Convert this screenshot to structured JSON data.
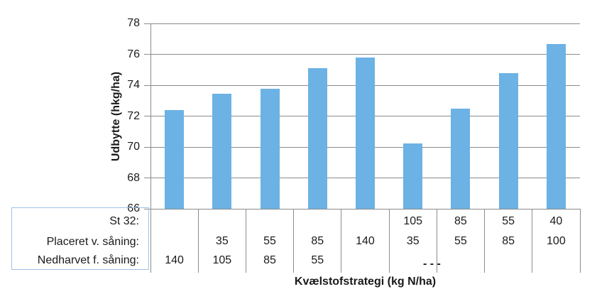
{
  "chart_data": {
    "type": "bar",
    "title": "",
    "ylabel": "Udbytte (hkg/ha)",
    "xlabel": "Kvælstofstrategi (kg N/ha)",
    "ylim": [
      66,
      78
    ],
    "yticks": [
      66,
      68,
      70,
      72,
      74,
      76,
      78
    ],
    "grid": true,
    "legend": false,
    "values": [
      72.4,
      73.45,
      73.75,
      75.1,
      75.8,
      70.25,
      72.5,
      74.8,
      76.65
    ],
    "category_levels": {
      "labels": [
        "St 32:",
        "Placeret v. såning:",
        "Nedharvet f. såning:"
      ],
      "matrix": [
        [
          "",
          "",
          "",
          "",
          "",
          "105",
          "85",
          "55",
          "40"
        ],
        [
          "",
          "35",
          "55",
          "85",
          "140",
          "35",
          "55",
          "85",
          "100"
        ],
        [
          "140",
          "105",
          "85",
          "55",
          "",
          "",
          "",
          "",
          ""
        ]
      ]
    },
    "colors": {
      "bar": "#6CB2E4",
      "grid": "#8C8C8C",
      "axis": "#8C8C8C",
      "label_box_border": "#9DC3E6",
      "text": "#1a1a1a"
    }
  },
  "artifacts": {
    "clipped_text": "- - -"
  }
}
